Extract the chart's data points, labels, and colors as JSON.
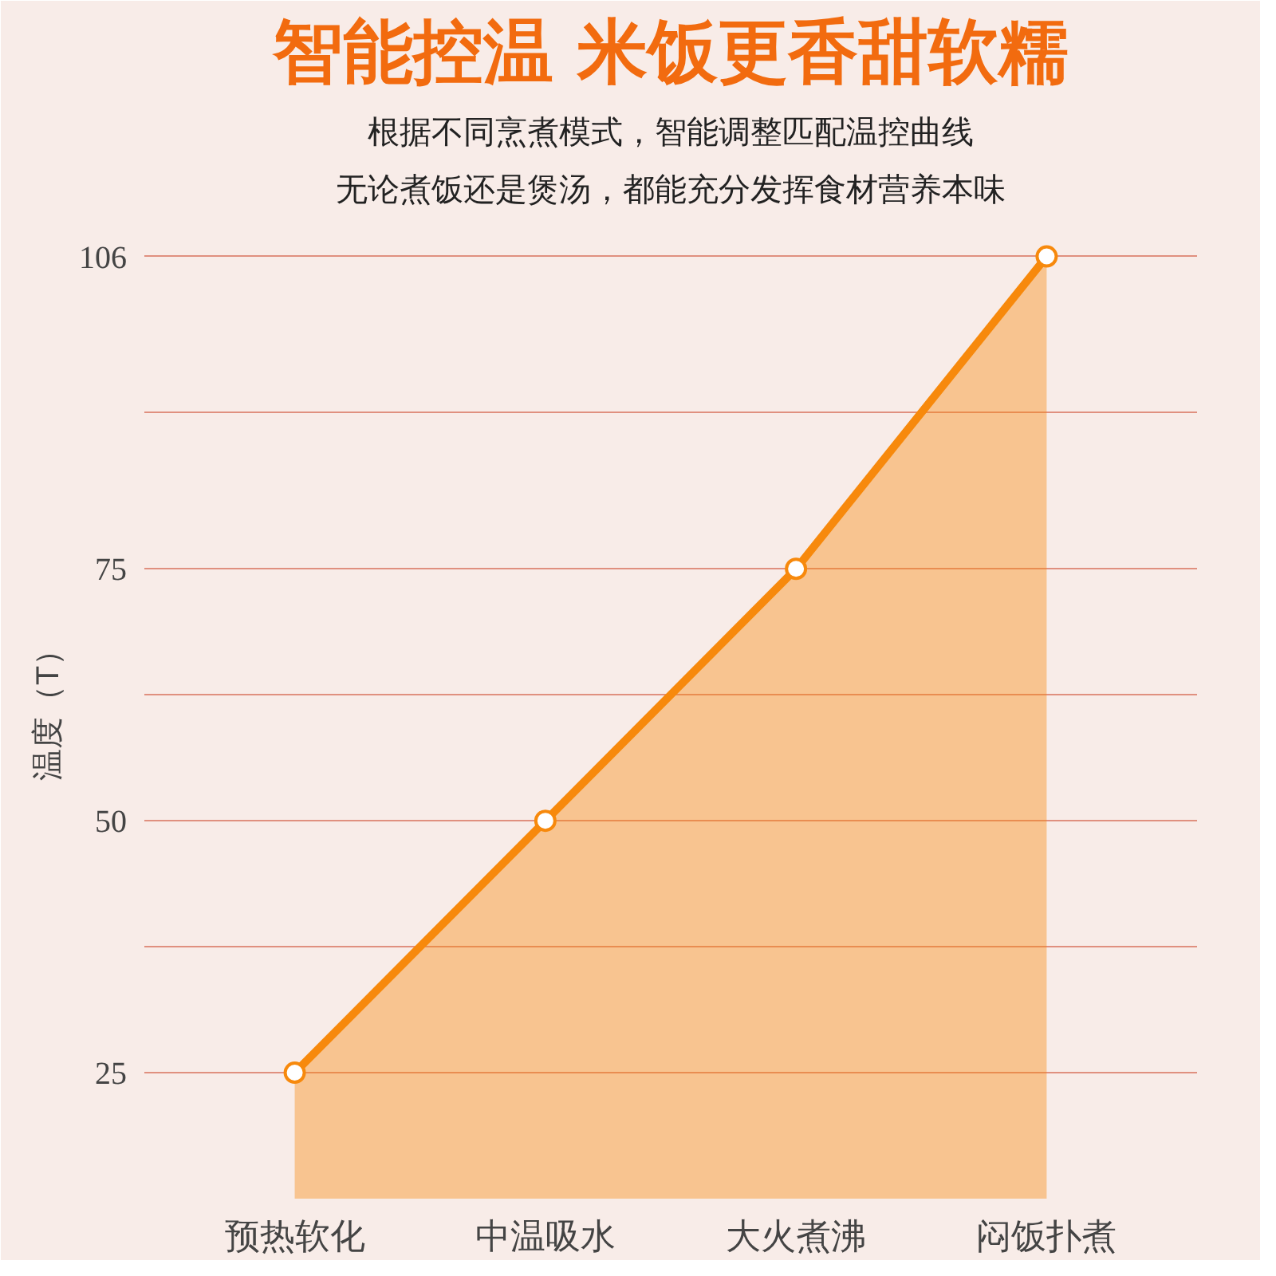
{
  "chart_data": {
    "type": "area",
    "title": "智能控温 米饭更香甜软糯",
    "subtitle": "根据不同烹煮模式，智能调整匹配温控曲线",
    "annotations": [
      "无论煮饭还是煲汤，都能充分发挥食材营养本味"
    ],
    "ylabel": "温度（T）",
    "categories": [
      "预热软化",
      "中温吸水",
      "大火煮沸",
      "闷饭扑煮"
    ],
    "series": [
      {
        "color": "#f7890c",
        "values": [
          25,
          50,
          75,
          106
        ]
      }
    ],
    "ylim": [
      12.5,
      110
    ],
    "yticks": [
      {
        "value": 12.5,
        "label": null
      },
      25,
      {
        "value": 37.5,
        "label": null
      },
      50,
      {
        "value": 62.5,
        "label": null
      },
      75,
      {
        "value": 90.5,
        "label": null
      },
      106
    ],
    "grid": "y",
    "marker": "circle",
    "line_style": "solid"
  }
}
